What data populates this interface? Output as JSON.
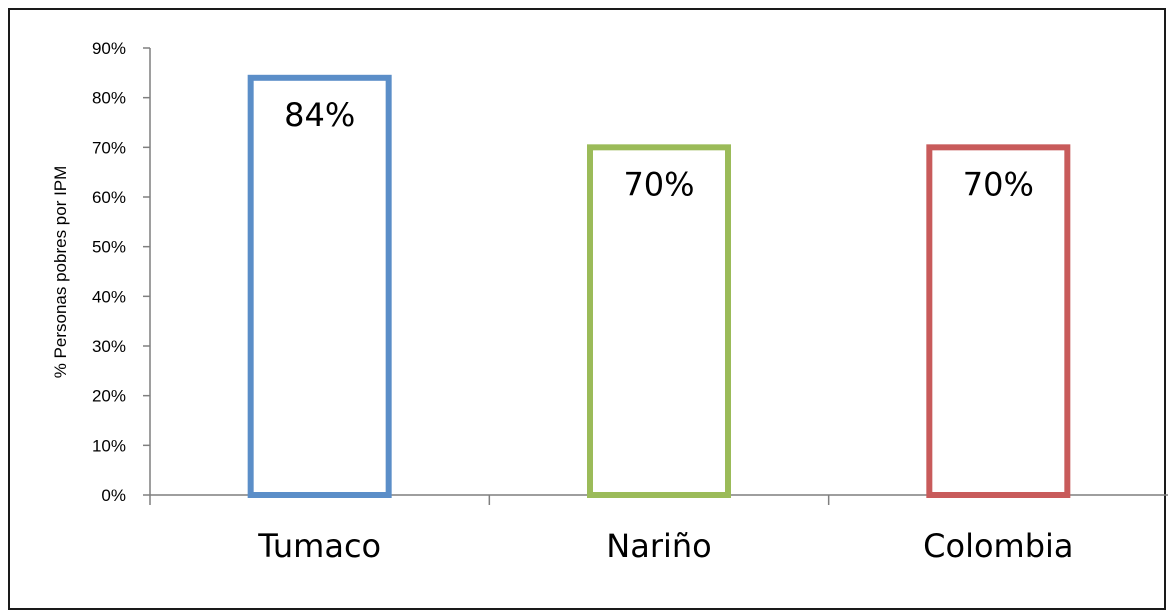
{
  "chart_data": {
    "type": "bar",
    "categories": [
      "Tumaco",
      "Nariño",
      "Colombia"
    ],
    "values": [
      84,
      70,
      70
    ],
    "data_labels": [
      "84%",
      "70%",
      "70%"
    ],
    "colors": [
      "#5b8ec8",
      "#9bbb59",
      "#c85b5b"
    ],
    "ylabel": "% Personas pobres por IPM",
    "ylim": [
      0,
      90
    ],
    "yticks": [
      0,
      10,
      20,
      30,
      40,
      50,
      60,
      70,
      80,
      90
    ],
    "ytick_labels": [
      "0%",
      "10%",
      "20%",
      "30%",
      "40%",
      "50%",
      "60%",
      "70%",
      "80%",
      "90%"
    ],
    "bar_style": "outlined",
    "grid": false,
    "legend": "none"
  }
}
